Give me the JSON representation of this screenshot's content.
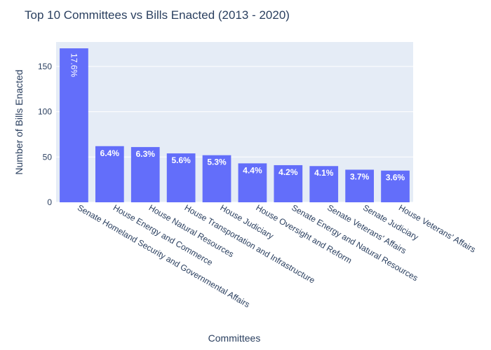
{
  "chart_data": {
    "type": "bar",
    "title": "Top 10 Committees vs Bills Enacted (2013 - 2020)",
    "xlabel": "Committees",
    "ylabel": "Number of Bills Enacted",
    "ylim": [
      0,
      177
    ],
    "yticks": [
      0,
      50,
      100,
      150
    ],
    "grid": true,
    "categories": [
      "Senate Homeland Security and Governmental Affairs",
      "House Energy and Commerce",
      "House Natural Resources",
      "House Transportation and Infrastructure",
      "House Judiciary",
      "House Oversight and Reform",
      "Senate Energy and Natural Resources",
      "Senate Veterans' Affairs",
      "Senate Judiciary",
      "House Veterans' Affairs"
    ],
    "values": [
      170,
      62,
      61,
      54,
      52,
      43,
      41,
      40,
      36,
      35
    ],
    "labels": [
      "17.6%",
      "6.4%",
      "6.3%",
      "5.6%",
      "5.3%",
      "4.4%",
      "4.2%",
      "4.1%",
      "3.7%",
      "3.6%"
    ],
    "colors": {
      "bar": "#636efa",
      "plot_bg": "#e5ecf6",
      "grid": "#ffffff",
      "text": "#2a3f5f",
      "label": "#ffffff"
    }
  }
}
